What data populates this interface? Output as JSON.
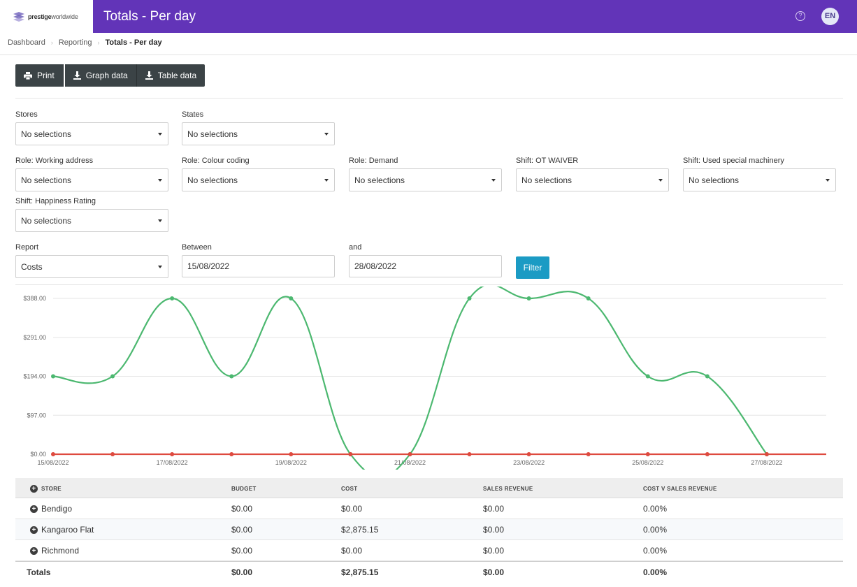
{
  "header": {
    "logo_bold": "prestige",
    "logo_light": "worldwide",
    "title": "Totals - Per day",
    "help_icon": "question-circle-icon",
    "avatar_initials": "EN",
    "brand_color": "#6234b8"
  },
  "breadcrumb": {
    "items": [
      "Dashboard",
      "Reporting"
    ],
    "current": "Totals - Per day"
  },
  "toolbar": {
    "print_label": "Print",
    "graph_data_label": "Graph data",
    "table_data_label": "Table data"
  },
  "filters": {
    "stores": {
      "label": "Stores",
      "value": "No selections"
    },
    "states": {
      "label": "States",
      "value": "No selections"
    },
    "role_working_address": {
      "label": "Role: Working address",
      "value": "No selections"
    },
    "role_colour_coding": {
      "label": "Role: Colour coding",
      "value": "No selections"
    },
    "role_demand": {
      "label": "Role: Demand",
      "value": "No selections"
    },
    "shift_ot_waiver": {
      "label": "Shift: OT WAIVER",
      "value": "No selections"
    },
    "shift_special_machinery": {
      "label": "Shift: Used special machinery",
      "value": "No selections"
    },
    "shift_happiness": {
      "label": "Shift: Happiness Rating",
      "value": "No selections"
    },
    "report": {
      "label": "Report",
      "value": "Costs"
    },
    "between": {
      "label": "Between",
      "value": "15/08/2022"
    },
    "and": {
      "label": "and",
      "value": "28/08/2022"
    },
    "filter_button": "Filter",
    "filter_button_color": "#1b9bc4"
  },
  "chart_data": {
    "type": "line",
    "x": [
      "15/08/2022",
      "16/08/2022",
      "17/08/2022",
      "18/08/2022",
      "19/08/2022",
      "20/08/2022",
      "21/08/2022",
      "22/08/2022",
      "23/08/2022",
      "24/08/2022",
      "25/08/2022",
      "26/08/2022",
      "27/08/2022",
      "28/08/2022"
    ],
    "x_tick_labels": [
      "15/08/2022",
      "17/08/2022",
      "19/08/2022",
      "21/08/2022",
      "23/08/2022",
      "25/08/2022",
      "27/08/2022"
    ],
    "y_tick_labels": [
      "$0.00",
      "$97.00",
      "$194.00",
      "$291.00",
      "$388.00"
    ],
    "ylim": [
      0,
      388
    ],
    "grid": true,
    "series": [
      {
        "color": "#4cb870",
        "values": [
          194,
          194,
          388,
          194,
          388,
          0,
          0,
          388,
          388,
          388,
          194,
          194,
          0,
          null
        ]
      },
      {
        "color": "#de4a3f",
        "values": [
          0,
          0,
          0,
          0,
          0,
          0,
          0,
          0,
          0,
          0,
          0,
          0,
          0,
          0
        ]
      }
    ]
  },
  "table": {
    "headers": [
      "STORE",
      "BUDGET",
      "COST",
      "SALES REVENUE",
      "COST V SALES REVENUE"
    ],
    "rows": [
      [
        "Bendigo",
        "$0.00",
        "$0.00",
        "$0.00",
        "0.00%"
      ],
      [
        "Kangaroo Flat",
        "$0.00",
        "$2,875.15",
        "$0.00",
        "0.00%"
      ],
      [
        "Richmond",
        "$0.00",
        "$0.00",
        "$0.00",
        "0.00%"
      ]
    ],
    "totals": [
      "Totals",
      "$0.00",
      "$2,875.15",
      "$0.00",
      "0.00%"
    ]
  }
}
